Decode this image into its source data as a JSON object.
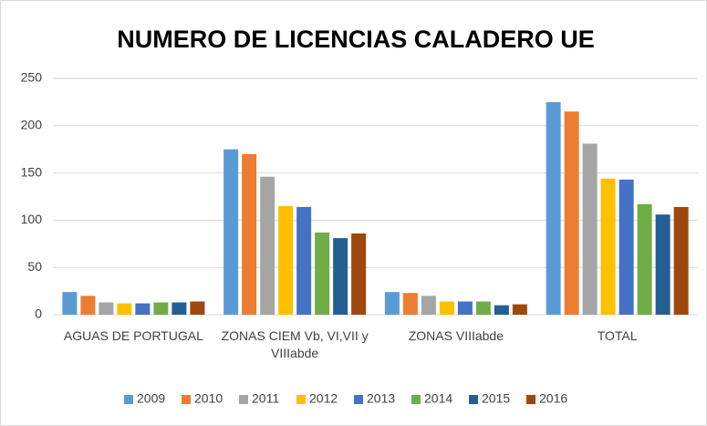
{
  "chart_data": {
    "type": "bar",
    "title": "NUMERO DE LICENCIAS CALADERO UE",
    "categories": [
      "AGUAS DE PORTUGAL",
      "ZONAS CIEM Vb, VI,VII y VIIIabde",
      "ZONAS VIIIabde",
      "TOTAL"
    ],
    "series": [
      {
        "name": "2009",
        "color": "#5b9bd5",
        "values": [
          24,
          175,
          24,
          225
        ]
      },
      {
        "name": "2010",
        "color": "#ed7d31",
        "values": [
          20,
          170,
          23,
          215
        ]
      },
      {
        "name": "2011",
        "color": "#a5a5a5",
        "values": [
          13,
          146,
          20,
          181
        ]
      },
      {
        "name": "2012",
        "color": "#ffc000",
        "values": [
          12,
          115,
          14,
          144
        ]
      },
      {
        "name": "2013",
        "color": "#4472c4",
        "values": [
          12,
          114,
          14,
          143
        ]
      },
      {
        "name": "2014",
        "color": "#70ad47",
        "values": [
          13,
          87,
          14,
          117
        ]
      },
      {
        "name": "2015",
        "color": "#255e91",
        "values": [
          13,
          81,
          10,
          106
        ]
      },
      {
        "name": "2016",
        "color": "#9e480e",
        "values": [
          14,
          86,
          11,
          114
        ]
      }
    ],
    "ylim": [
      0,
      250
    ],
    "yticks": [
      0,
      50,
      100,
      150,
      200,
      250
    ],
    "grid": true,
    "legend": "bottom"
  }
}
